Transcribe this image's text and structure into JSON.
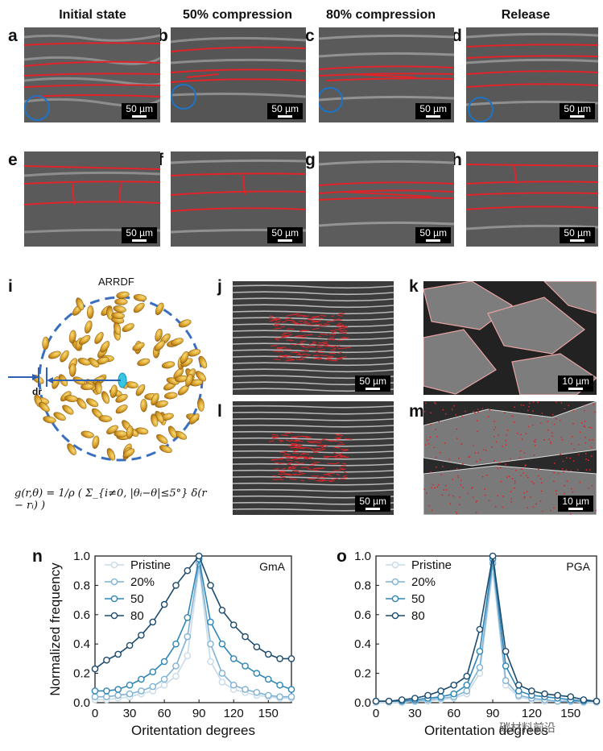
{
  "columns": [
    "Initial state",
    "50% compression",
    "80% compression",
    "Release"
  ],
  "labels": {
    "a": "a",
    "b": "b",
    "c": "c",
    "d": "d",
    "e": "e",
    "f": "f",
    "g": "g",
    "h": "h",
    "i": "i",
    "j": "j",
    "k": "k",
    "l": "l",
    "m": "m",
    "n": "n",
    "o": "o"
  },
  "scale": {
    "s50": "50 µm",
    "s10": "10 µm"
  },
  "arrdf": {
    "title": "ARRDF",
    "dr": "dr"
  },
  "formula": "g(r,θ) = 1/ρ ( Σ_{i≠0, |θᵢ−θ|≤5°} δ(r − rᵢ) )",
  "watermark": "碳材料前沿",
  "colors": {
    "pristine": "#c9dbe9",
    "c20": "#7fb2d5",
    "c50": "#2f86b5",
    "c80": "#1c4b6e",
    "trace": "#e0242a"
  },
  "chart_data": [
    {
      "type": "line",
      "annotation": "GmA",
      "xlabel": "Oritentation degrees",
      "ylabel": "Normalized frequency",
      "xlim": [
        0,
        170
      ],
      "ylim": [
        0,
        1.0
      ],
      "xticks": [
        0,
        30,
        60,
        90,
        120,
        150
      ],
      "yticks": [
        0.0,
        0.2,
        0.4,
        0.6,
        0.8,
        1.0
      ],
      "x": [
        0,
        10,
        20,
        30,
        40,
        50,
        60,
        70,
        80,
        90,
        100,
        110,
        120,
        130,
        140,
        150,
        160,
        170
      ],
      "series": [
        {
          "name": "Pristine",
          "values": [
            0.02,
            0.02,
            0.03,
            0.04,
            0.06,
            0.08,
            0.12,
            0.18,
            0.32,
            0.92,
            0.28,
            0.14,
            0.09,
            0.07,
            0.05,
            0.04,
            0.03,
            0.03
          ]
        },
        {
          "name": "20%",
          "values": [
            0.04,
            0.04,
            0.05,
            0.06,
            0.08,
            0.11,
            0.16,
            0.25,
            0.45,
            0.95,
            0.4,
            0.2,
            0.12,
            0.09,
            0.07,
            0.05,
            0.04,
            0.04
          ]
        },
        {
          "name": "50",
          "values": [
            0.08,
            0.08,
            0.09,
            0.12,
            0.16,
            0.21,
            0.28,
            0.4,
            0.58,
            0.98,
            0.55,
            0.4,
            0.3,
            0.25,
            0.2,
            0.16,
            0.12,
            0.09
          ]
        },
        {
          "name": "80",
          "values": [
            0.23,
            0.29,
            0.33,
            0.39,
            0.46,
            0.55,
            0.67,
            0.8,
            0.9,
            1.0,
            0.8,
            0.63,
            0.53,
            0.45,
            0.38,
            0.33,
            0.3,
            0.3
          ]
        }
      ],
      "legend": "top-left"
    },
    {
      "type": "line",
      "annotation": "PGA",
      "xlabel": "Oritentation degrees",
      "ylabel": "",
      "xlim": [
        0,
        170
      ],
      "ylim": [
        0,
        1.0
      ],
      "xticks": [
        0,
        30,
        60,
        90,
        120,
        150
      ],
      "yticks": [
        0.0,
        0.2,
        0.4,
        0.6,
        0.8,
        1.0
      ],
      "x": [
        0,
        10,
        20,
        30,
        40,
        50,
        60,
        70,
        80,
        90,
        100,
        110,
        120,
        130,
        140,
        150,
        160,
        170
      ],
      "series": [
        {
          "name": "Pristine",
          "values": [
            0.0,
            0.0,
            0.0,
            0.01,
            0.01,
            0.02,
            0.03,
            0.06,
            0.2,
            0.9,
            0.12,
            0.04,
            0.02,
            0.01,
            0.01,
            0.01,
            0.0,
            0.0
          ]
        },
        {
          "name": "20%",
          "values": [
            0.01,
            0.01,
            0.01,
            0.01,
            0.02,
            0.03,
            0.04,
            0.08,
            0.24,
            0.95,
            0.15,
            0.05,
            0.03,
            0.02,
            0.01,
            0.01,
            0.01,
            0.01
          ]
        },
        {
          "name": "50",
          "values": [
            0.01,
            0.01,
            0.01,
            0.02,
            0.03,
            0.04,
            0.06,
            0.12,
            0.35,
            0.98,
            0.25,
            0.08,
            0.05,
            0.04,
            0.03,
            0.02,
            0.01,
            0.01
          ]
        },
        {
          "name": "80",
          "values": [
            0.01,
            0.01,
            0.02,
            0.03,
            0.05,
            0.08,
            0.12,
            0.18,
            0.5,
            1.0,
            0.35,
            0.12,
            0.08,
            0.06,
            0.05,
            0.04,
            0.02,
            0.01
          ]
        }
      ],
      "legend": "top-left"
    }
  ]
}
